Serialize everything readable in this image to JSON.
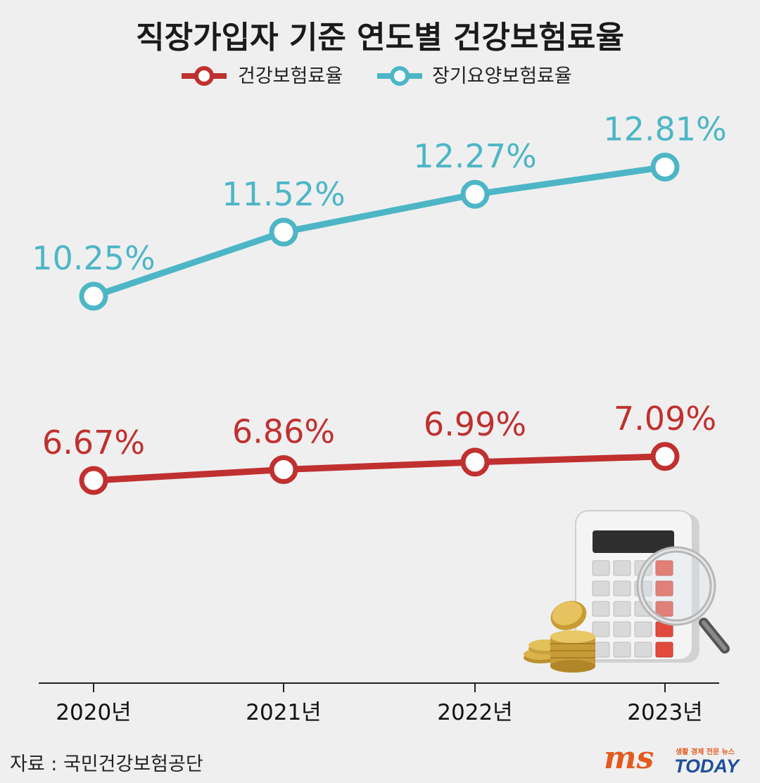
{
  "chart_data": {
    "type": "line",
    "title": "직장가입자 기준 연도별 건강보험료율",
    "categories": [
      "2020년",
      "2021년",
      "2022년",
      "2023년"
    ],
    "series": [
      {
        "name": "건강보험료율",
        "color": "#c0302f",
        "values": [
          6.67,
          6.86,
          6.99,
          7.09
        ],
        "labels": [
          "6.67%",
          "6.86%",
          "6.99%",
          "7.09%"
        ]
      },
      {
        "name": "장기요양보험료율",
        "color": "#4db6c6",
        "values": [
          10.25,
          11.52,
          12.27,
          12.81
        ],
        "labels": [
          "10.25%",
          "11.52%",
          "12.27%",
          "12.81%"
        ]
      }
    ],
    "xlabel": "",
    "ylabel": "",
    "grid": false,
    "legend": "top-center"
  },
  "source": "자료 : 국민건강보험공단",
  "logo": {
    "brand": "ms",
    "name": "TODAY",
    "tagline": "생활 경제 전문 뉴스"
  },
  "icons": [
    "calculator-icon",
    "magnifier-icon",
    "coins-icon"
  ]
}
